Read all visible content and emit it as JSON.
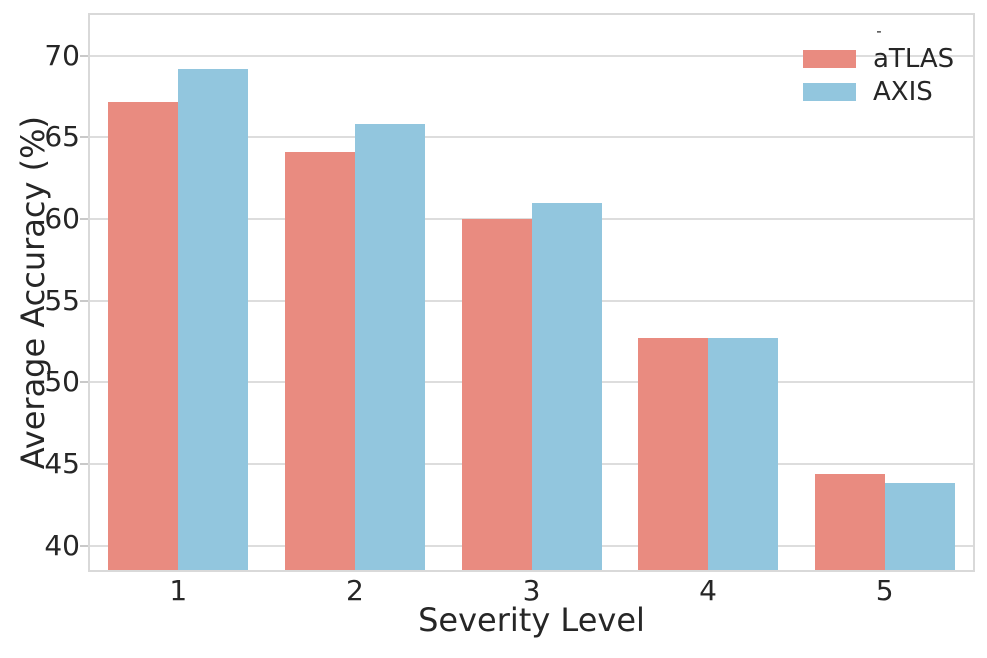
{
  "chart_data": {
    "type": "bar",
    "title": "",
    "xlabel": "Severity Level",
    "ylabel": "Average Accuracy (%)",
    "categories": [
      "1",
      "2",
      "3",
      "4",
      "5"
    ],
    "series": [
      {
        "name": "aTLAS",
        "color": "#E98B80",
        "values": [
          67.2,
          64.1,
          60.0,
          52.7,
          44.4
        ]
      },
      {
        "name": "AXIS",
        "color": "#92C6DE",
        "values": [
          69.2,
          65.8,
          61.0,
          52.7,
          43.8
        ]
      }
    ],
    "yticks": [
      40,
      45,
      50,
      55,
      60,
      65,
      70
    ],
    "ylim": [
      38.5,
      72.5
    ],
    "grid": true,
    "legend_position": "upper right",
    "legend_title": "-"
  },
  "colors": {
    "grid": "#DDDDDD",
    "spine": "#D9D9D9",
    "tick_mark": "#C9C9C9",
    "text": "#262626",
    "background": "#FFFFFF"
  }
}
